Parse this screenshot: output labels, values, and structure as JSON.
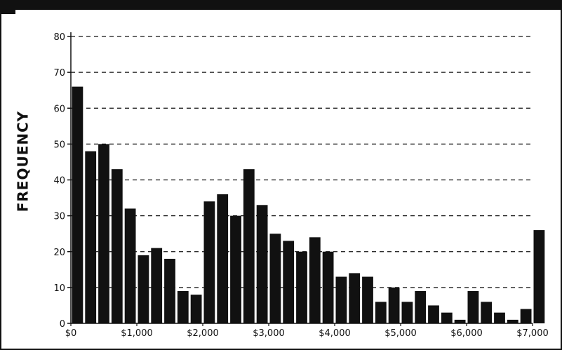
{
  "chart_data": {
    "type": "bar",
    "title": "",
    "xlabel": "",
    "ylabel": "FREQUENCY",
    "ylim": [
      0,
      80
    ],
    "yticks": [
      "0",
      "10",
      "20",
      "30",
      "40",
      "50",
      "60",
      "70",
      "80"
    ],
    "xlim": [
      0,
      7000
    ],
    "xticks": [
      {
        "value": 0,
        "label": "$0"
      },
      {
        "value": 1000,
        "label": "$1,000"
      },
      {
        "value": 2000,
        "label": "$2,000"
      },
      {
        "value": 3000,
        "label": "$3,000"
      },
      {
        "value": 4000,
        "label": "$4,000"
      },
      {
        "value": 5000,
        "label": "$5,000"
      },
      {
        "value": 6000,
        "label": "$6,000"
      },
      {
        "value": 7000,
        "label": "$7,000"
      }
    ],
    "bin_width": 200,
    "grid": "horizontal dashed",
    "bar_color": "#111111",
    "values": [
      66,
      48,
      50,
      43,
      32,
      19,
      21,
      18,
      9,
      8,
      34,
      36,
      30,
      43,
      33,
      25,
      23,
      20,
      24,
      20,
      13,
      14,
      13,
      6,
      10,
      6,
      9,
      5,
      3,
      1,
      9,
      6,
      3,
      1,
      4,
      26
    ]
  }
}
